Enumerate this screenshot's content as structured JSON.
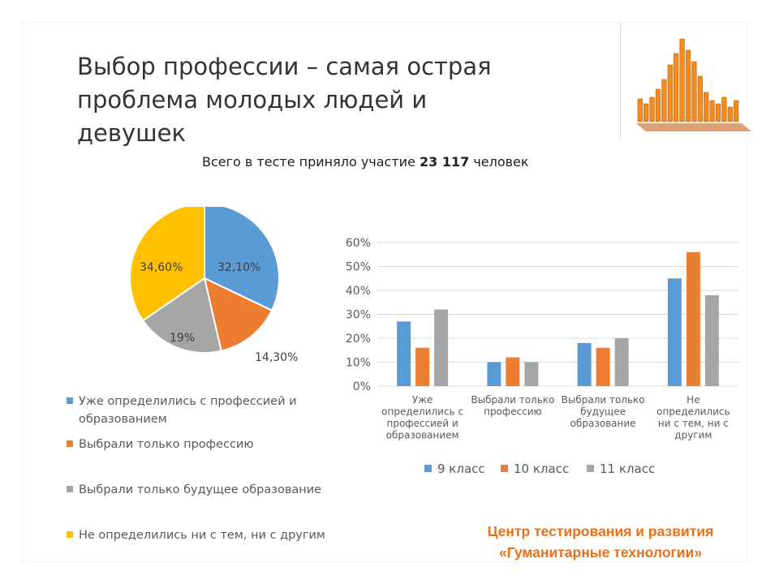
{
  "slide": {
    "title_lines": [
      "Выбор профессии – самая острая",
      "проблема молодых людей и",
      "девушек"
    ],
    "subtitle_prefix": "Всего в тесте приняло участие ",
    "subtitle_number": "23 117",
    "subtitle_suffix": " человек",
    "footer_lines": [
      "Центр тестирования и развития",
      "«Гуманитарные технологии»"
    ],
    "footer_color": "#e8701a",
    "logo_icon": "bar-histogram-logo-icon",
    "logo_color": "#f28c1e"
  },
  "chart_data": [
    {
      "type": "pie",
      "categories": [
        "Уже определились с профессией и образованием",
        "Выбрали только профессию",
        "Выбрали только будущее образование",
        "Не определились ни с тем, ни с другим"
      ],
      "values": [
        32.1,
        14.3,
        19,
        34.6
      ],
      "data_labels": [
        "32,10%",
        "14,30%",
        "19%",
        "34,60%"
      ],
      "colors": [
        "#5b9bd5",
        "#ed7d31",
        "#a5a5a5",
        "#ffc000"
      ],
      "legend_position": "bottom"
    },
    {
      "type": "bar",
      "categories": [
        [
          "Уже",
          "определились с",
          "профессией и",
          "образованием"
        ],
        [
          "Выбрали только",
          "профессию"
        ],
        [
          "Выбрали только",
          "будущее",
          "образование"
        ],
        [
          "Не",
          "определились",
          "ни с тем, ни с",
          "другим"
        ]
      ],
      "series": [
        {
          "name": "9 класс",
          "values": [
            27,
            10,
            18,
            45
          ],
          "color": "#5b9bd5"
        },
        {
          "name": "10 класс",
          "values": [
            16,
            12,
            16,
            56
          ],
          "color": "#ed7d31"
        },
        {
          "name": "11 класс",
          "values": [
            32,
            10,
            20,
            38
          ],
          "color": "#a5a5a5"
        }
      ],
      "ylim": [
        0,
        60
      ],
      "yticks": [
        "0%",
        "10%",
        "20%",
        "30%",
        "40%",
        "50%",
        "60%"
      ],
      "grid": true,
      "legend_position": "bottom"
    }
  ]
}
